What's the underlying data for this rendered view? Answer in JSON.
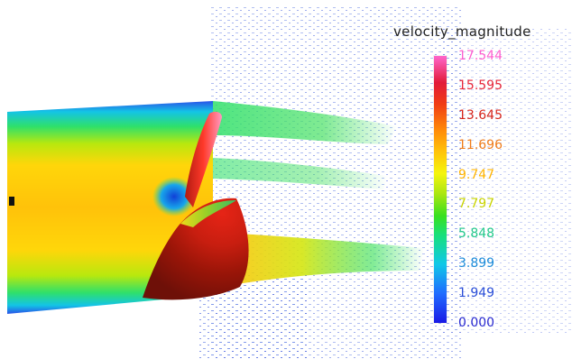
{
  "legend": {
    "title": "velocity_magnitude",
    "ticks": [
      {
        "label": "17.544",
        "color": "#ff5fcf"
      },
      {
        "label": "15.595",
        "color": "#e8273a"
      },
      {
        "label": "13.645",
        "color": "#d7261c"
      },
      {
        "label": "11.696",
        "color": "#f07c1a"
      },
      {
        "label": "9.747",
        "color": "#ffb400"
      },
      {
        "label": "7.797",
        "color": "#c9d400"
      },
      {
        "label": "5.848",
        "color": "#22c98a"
      },
      {
        "label": "3.899",
        "color": "#1c8bd9"
      },
      {
        "label": "1.949",
        "color": "#2b4fd8"
      },
      {
        "label": "0.000",
        "color": "#2a2ad0"
      }
    ]
  }
}
